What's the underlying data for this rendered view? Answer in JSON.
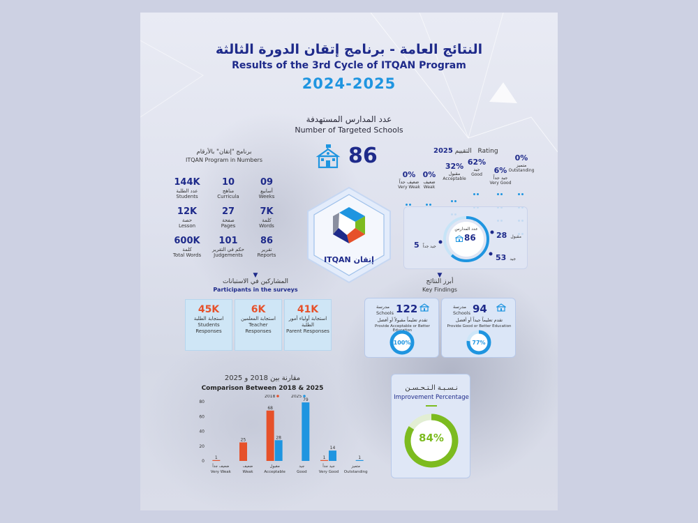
{
  "header": {
    "title_ar": "النتائج العامة - برنامج إتقان الدورة الثالثة",
    "title_en": "Results of the 3rd Cycle of ITQAN Program",
    "year": "2024-2025"
  },
  "targeted": {
    "label_ar": "عدد المدارس المستهدفة",
    "label_en": "Number of Targeted Schools",
    "value": "86"
  },
  "numbers": {
    "head_ar": "برنامج \"إتقان\" بالأرقام",
    "head_en": "ITQAN Program in Numbers",
    "items": [
      {
        "value": "144K",
        "ar": "عدد الطلبة",
        "en": "Students"
      },
      {
        "value": "10",
        "ar": "مناهج",
        "en": "Curricula"
      },
      {
        "value": "09",
        "ar": "أسابيع",
        "en": "Weeks"
      },
      {
        "value": "12K",
        "ar": "حصة",
        "en": "Lesson"
      },
      {
        "value": "27",
        "ar": "صفحة",
        "en": "Pages"
      },
      {
        "value": "7K",
        "ar": "كلمة",
        "en": "Words"
      },
      {
        "value": "600K",
        "ar": "كلمة",
        "en": "Total Words"
      },
      {
        "value": "101",
        "ar": "حكم في التقرير",
        "en": "Judgements"
      },
      {
        "value": "86",
        "ar": "تقرير",
        "en": "Reports"
      }
    ]
  },
  "logo": {
    "text": "ITQAN",
    "text_ar": "إتقان"
  },
  "rating": {
    "year": "2025",
    "label_ar": "التقييم",
    "label_en": "Rating",
    "items": [
      {
        "pct": "0%",
        "ar": "ضعيف جداً",
        "en": "Very Weak"
      },
      {
        "pct": "0%",
        "ar": "ضعيف",
        "en": "Weak"
      },
      {
        "pct": "32%",
        "ar": "مقبول",
        "en": "Acceptable"
      },
      {
        "pct": "62%",
        "ar": "جيد",
        "en": "Good"
      },
      {
        "pct": "6%",
        "ar": "جيد جداً",
        "en": "Very Good"
      },
      {
        "pct": "0%",
        "ar": "متميز",
        "en": "Outstanding"
      }
    ],
    "distribution": {
      "center_ar": "عدد المدارس",
      "center_value": "86",
      "acceptable": {
        "value": "28",
        "ar": "مقبول"
      },
      "very_good": {
        "value": "5",
        "ar": "جيد جداً"
      },
      "good": {
        "value": "53",
        "ar": "جيد"
      }
    }
  },
  "participants": {
    "head_ar": "المشاركين في الاستبانات",
    "head_en": "Participants in the surveys",
    "items": [
      {
        "value": "45K",
        "ar": "استجابة الطلبة",
        "en": "Students Responses"
      },
      {
        "value": "6K",
        "ar": "استجابة المعلمين",
        "en": "Teacher Responses"
      },
      {
        "value": "41K",
        "ar": "استجابة أولياء أمور الطلبة",
        "en": "Parent Responses"
      }
    ]
  },
  "findings": {
    "head_ar": "أبرز النتائج",
    "head_en": "Key Findings",
    "items": [
      {
        "value": "122",
        "unit_ar": "مدرسة",
        "unit_en": "Schools",
        "desc_ar": "تقدم تعليماً مقبولاً أو أفضل",
        "desc_en": "Provide Acceptable or Better Education",
        "pct": "100%",
        "fraction": 1.0
      },
      {
        "value": "94",
        "unit_ar": "مدرسة",
        "unit_en": "Schools",
        "desc_ar": "تقدم تعليماً جيداً أو أفضل",
        "desc_en": "Provide Good or Better Education",
        "pct": "77%",
        "fraction": 0.77
      }
    ]
  },
  "improvement": {
    "label_ar": "نـسـبـة الـتـحـسـن",
    "label_en": "Improvement Percentage",
    "pct": "84%",
    "fraction": 0.84
  },
  "colors": {
    "navy": "#1e2a8a",
    "blue": "#1f95e0",
    "orange": "#e6512a",
    "green": "#7cbb1f"
  },
  "chart_data": {
    "type": "bar",
    "title_ar": "مقارنة بين 2018 و 2025",
    "title": "Comparison Between 2018 & 2025",
    "categories": [
      {
        "ar": "ضعيف جداً",
        "en": "Very Weak"
      },
      {
        "ar": "ضعيف",
        "en": "Weak"
      },
      {
        "ar": "مقبول",
        "en": "Acceptable"
      },
      {
        "ar": "جيد",
        "en": "Good"
      },
      {
        "ar": "جيد جداً",
        "en": "Very Good"
      },
      {
        "ar": "متميز",
        "en": "Outstanding"
      }
    ],
    "series": [
      {
        "name": "2018",
        "color": "#e6512a",
        "values": [
          1,
          25,
          68,
          0,
          1,
          0
        ]
      },
      {
        "name": "2025",
        "color": "#1f95e0",
        "values": [
          0,
          0,
          28,
          79,
          14,
          1
        ]
      }
    ],
    "yticks": [
      0,
      20,
      40,
      60,
      80
    ],
    "ylim": [
      0,
      80
    ],
    "legend": "top-right"
  }
}
